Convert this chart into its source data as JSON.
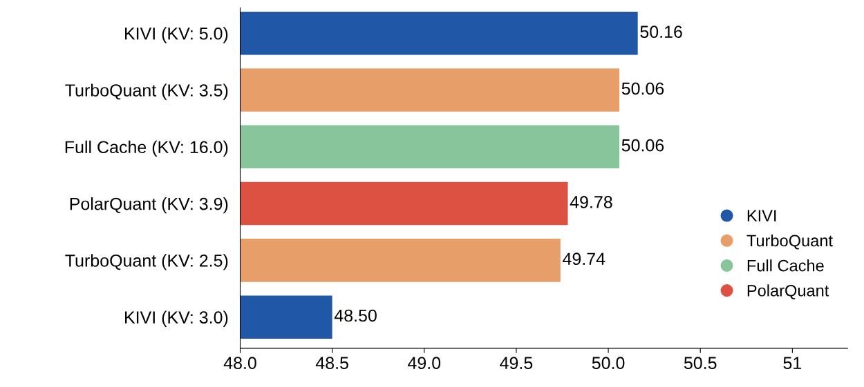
{
  "chart_data": {
    "type": "bar",
    "orientation": "horizontal",
    "categories": [
      "KIVI (KV: 5.0)",
      "TurboQuant (KV: 3.5)",
      "Full Cache (KV: 16.0)",
      "PolarQuant (KV: 3.9)",
      "TurboQuant (KV: 2.5)",
      "KIVI (KV: 3.0)"
    ],
    "series": [
      {
        "name": "KIVI",
        "color": "#2057a7",
        "values": [
          50.16,
          null,
          null,
          null,
          null,
          48.5
        ],
        "value_labels": [
          "50.16",
          null,
          null,
          null,
          null,
          "48.50"
        ]
      },
      {
        "name": "TurboQuant",
        "color": "#e89e68",
        "values": [
          null,
          50.06,
          null,
          null,
          49.74,
          null
        ],
        "value_labels": [
          null,
          "50.06",
          null,
          null,
          "49.74",
          null
        ]
      },
      {
        "name": "Full Cache",
        "color": "#88c59a",
        "values": [
          null,
          null,
          50.06,
          null,
          null,
          null
        ],
        "value_labels": [
          null,
          null,
          "50.06",
          null,
          null,
          null
        ]
      },
      {
        "name": "PolarQuant",
        "color": "#dc5141",
        "values": [
          null,
          null,
          null,
          49.78,
          null,
          null
        ],
        "value_labels": [
          null,
          null,
          null,
          "49.78",
          null,
          null
        ]
      }
    ],
    "xlim": [
      48.0,
      51.3
    ],
    "xticks": [
      {
        "value": 48.0,
        "label": "48.0"
      },
      48.5,
      {
        "value": 49.0,
        "label": "49.0"
      },
      49.5,
      {
        "value": 50.0,
        "label": "50.0"
      },
      50.5,
      51
    ],
    "legend": "lower right"
  }
}
